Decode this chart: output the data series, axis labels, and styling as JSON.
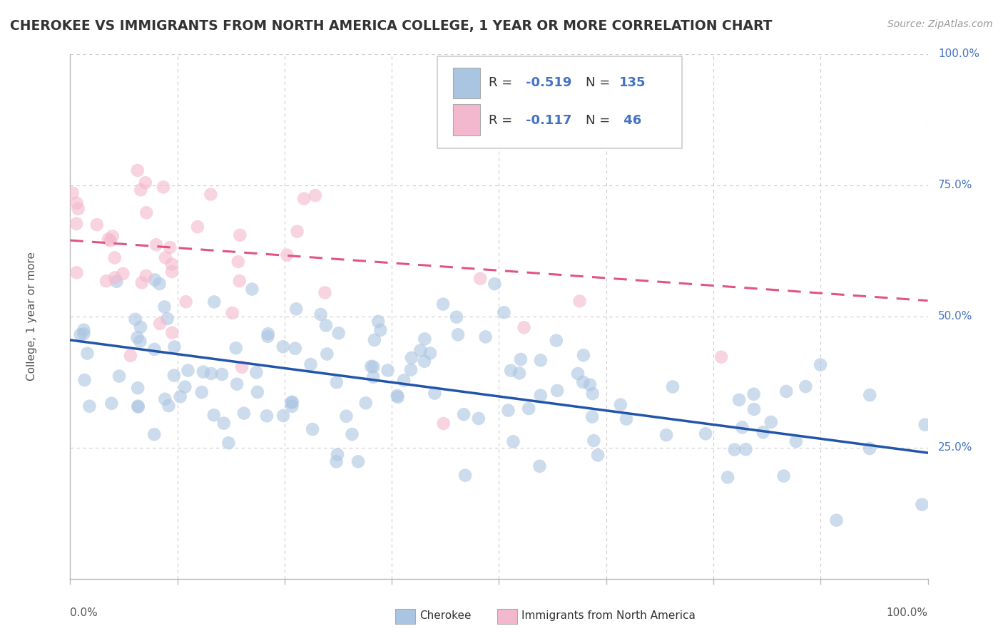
{
  "title": "CHEROKEE VS IMMIGRANTS FROM NORTH AMERICA COLLEGE, 1 YEAR OR MORE CORRELATION CHART",
  "source": "Source: ZipAtlas.com",
  "ylabel": "College, 1 year or more",
  "right_yticks": [
    "100.0%",
    "75.0%",
    "50.0%",
    "25.0%"
  ],
  "right_ytick_vals": [
    1.0,
    0.75,
    0.5,
    0.25
  ],
  "R_cherokee": -0.519,
  "N_cherokee": 135,
  "R_immigrants": -0.117,
  "N_immigrants": 46,
  "color_cherokee": "#aac5e2",
  "color_immigrants": "#f4b8ce",
  "color_line_cherokee": "#2255aa",
  "color_line_immigrants": "#e05580",
  "background_color": "#ffffff",
  "grid_color": "#cccccc",
  "title_color": "#333333",
  "source_color": "#999999",
  "xlim": [
    0.0,
    1.0
  ],
  "ylim": [
    0.0,
    1.0
  ],
  "scatter_alpha": 0.6,
  "scatter_size": 180,
  "line_intercept_cherokee": 0.455,
  "line_slope_cherokee": -0.215,
  "line_intercept_immigrants": 0.645,
  "line_slope_immigrants": -0.115
}
